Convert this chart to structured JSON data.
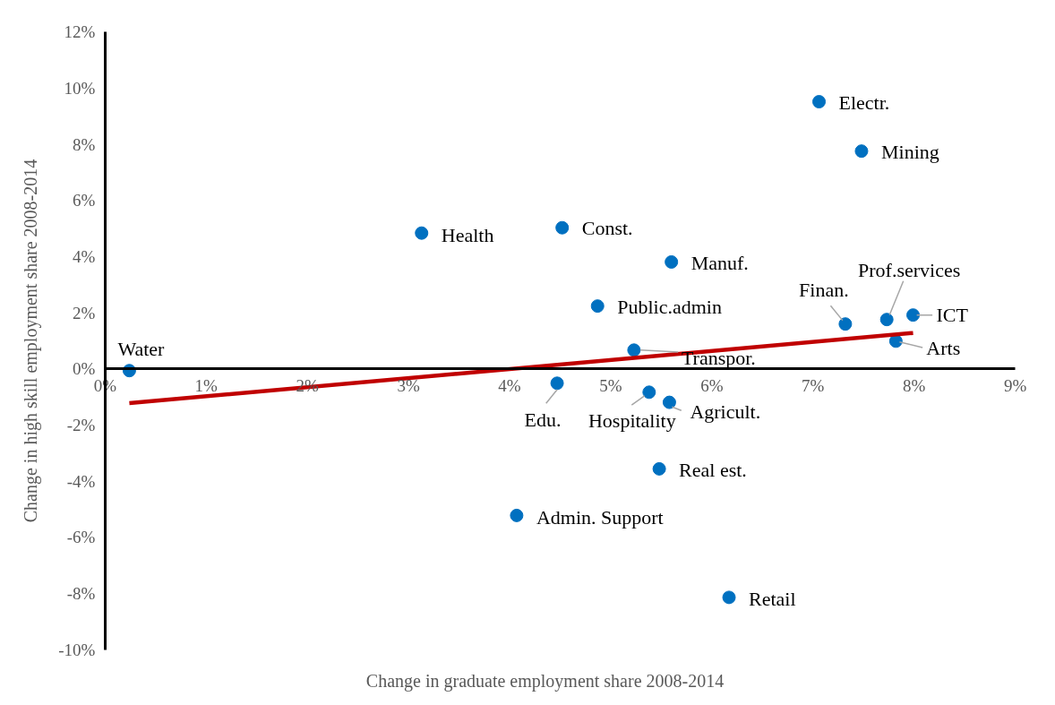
{
  "chart_data": {
    "type": "scatter",
    "xlabel": "Change in graduate employment share 2008-2014",
    "ylabel": "Change in high skill employment share 2008-2014",
    "xlim": [
      0,
      9
    ],
    "ylim": [
      -10,
      12
    ],
    "xticks": [
      {
        "value": 0,
        "label": "0%"
      },
      {
        "value": 1,
        "label": "1%"
      },
      {
        "value": 2,
        "label": "2%"
      },
      {
        "value": 3,
        "label": "3%"
      },
      {
        "value": 4,
        "label": "4%"
      },
      {
        "value": 5,
        "label": "5%"
      },
      {
        "value": 6,
        "label": "6%"
      },
      {
        "value": 7,
        "label": "7%"
      },
      {
        "value": 8,
        "label": "8%"
      },
      {
        "value": 9,
        "label": "9%"
      }
    ],
    "yticks": [
      {
        "value": -10,
        "label": "-10%"
      },
      {
        "value": -8,
        "label": "-8%"
      },
      {
        "value": -6,
        "label": "-6%"
      },
      {
        "value": -4,
        "label": "-4%"
      },
      {
        "value": -2,
        "label": "-2%"
      },
      {
        "value": 0,
        "label": "0%"
      },
      {
        "value": 2,
        "label": "2%"
      },
      {
        "value": 4,
        "label": "4%"
      },
      {
        "value": 6,
        "label": "6%"
      },
      {
        "value": 8,
        "label": "8%"
      },
      {
        "value": 10,
        "label": "10%"
      },
      {
        "value": 12,
        "label": "12%"
      }
    ],
    "grid": false,
    "series": [
      {
        "marker": "circle",
        "color": "#0070c0",
        "x": [
          0.24,
          3.13,
          4.52,
          5.6,
          4.87,
          5.23,
          4.47,
          5.38,
          5.58,
          5.48,
          4.07,
          6.17,
          7.06,
          7.48,
          7.32,
          7.73,
          7.99,
          7.82
        ],
        "values": [
          -0.06,
          4.84,
          5.03,
          3.81,
          2.24,
          0.67,
          -0.51,
          -0.83,
          -1.19,
          -3.56,
          -5.22,
          -8.14,
          9.52,
          7.76,
          1.6,
          1.76,
          1.92,
          0.99
        ]
      },
      {
        "type": "line",
        "color": "#c00000",
        "x": [
          0.24,
          7.99
        ],
        "values": [
          -1.22,
          1.28
        ]
      }
    ],
    "annotations": [
      {
        "text": "Water",
        "x": 0.24,
        "y": -0.06
      },
      {
        "text": "Health",
        "x": 3.13,
        "y": 4.84
      },
      {
        "text": "Const.",
        "x": 4.52,
        "y": 5.03
      },
      {
        "text": "Manuf.",
        "x": 5.6,
        "y": 3.81
      },
      {
        "text": "Public.admin",
        "x": 4.87,
        "y": 2.24
      },
      {
        "text": "Transpor.",
        "x": 5.23,
        "y": 0.67
      },
      {
        "text": "Edu.",
        "x": 4.47,
        "y": -0.51
      },
      {
        "text": "Hospitality",
        "x": 5.38,
        "y": -0.83
      },
      {
        "text": "Agricult.",
        "x": 5.58,
        "y": -1.19
      },
      {
        "text": "Real est.",
        "x": 5.48,
        "y": -3.56
      },
      {
        "text": "Admin. Support",
        "x": 4.07,
        "y": -5.22
      },
      {
        "text": "Retail",
        "x": 6.17,
        "y": -8.14
      },
      {
        "text": "Electr.",
        "x": 7.06,
        "y": 9.52
      },
      {
        "text": "Mining",
        "x": 7.48,
        "y": 7.76
      },
      {
        "text": "Finan.",
        "x": 7.32,
        "y": 1.6
      },
      {
        "text": "Prof.services",
        "x": 7.73,
        "y": 1.76
      },
      {
        "text": "ICT",
        "x": 7.99,
        "y": 1.92
      },
      {
        "text": "Arts",
        "x": 7.82,
        "y": 0.99
      }
    ]
  }
}
